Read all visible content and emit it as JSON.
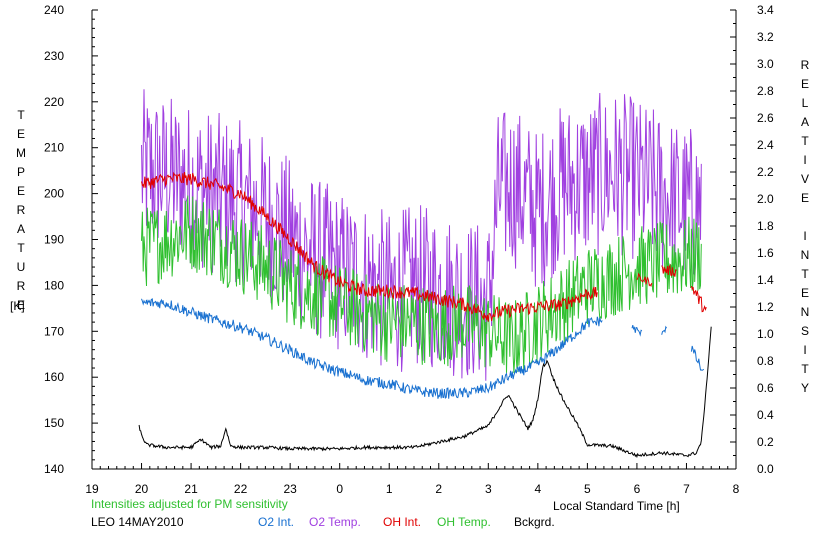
{
  "chart_data": {
    "type": "line",
    "xlabel": "Local Standard Time [h]",
    "ylabel_left": "TEMPERATURE",
    "ylabel_left_unit": "[K]",
    "ylabel_right": "RELATIVE INTENSITY",
    "x_ticks": [
      "19",
      "20",
      "21",
      "22",
      "23",
      "0",
      "1",
      "2",
      "3",
      "4",
      "5",
      "6",
      "7",
      "8"
    ],
    "xlim": [
      19,
      32
    ],
    "ylim_left": [
      140,
      240
    ],
    "ylim_right": [
      0.0,
      3.4
    ],
    "y_ticks_left": [
      "140",
      "150",
      "160",
      "170",
      "180",
      "190",
      "200",
      "210",
      "220",
      "230",
      "240"
    ],
    "y_ticks_right": [
      "0.0",
      "0.2",
      "0.4",
      "0.6",
      "0.8",
      "1.0",
      "1.2",
      "1.4",
      "1.6",
      "1.8",
      "2.0",
      "2.2",
      "2.4",
      "2.6",
      "2.8",
      "3.0",
      "3.2",
      "3.4"
    ],
    "note": "Intensities adjusted for PM sensitivity",
    "station": "LEO 14MAY2010",
    "grid": false,
    "series": [
      {
        "name": "O2 Temp.",
        "color": "#a040e0",
        "axis": "left",
        "noise": 18,
        "x": [
          20.0,
          20.5,
          21.0,
          21.5,
          22.0,
          22.5,
          23.0,
          23.5,
          24.0,
          24.5,
          25.0,
          25.5,
          26.0,
          26.5,
          27.0,
          27.2,
          27.5,
          28.0,
          28.5,
          29.0,
          29.5,
          30.0,
          30.5,
          31.0,
          31.3
        ],
        "y": [
          205,
          204,
          202,
          200,
          198,
          195,
          190,
          186,
          183,
          181,
          178,
          180,
          179,
          177,
          176,
          200,
          202,
          196,
          202,
          203,
          205,
          203,
          200,
          197,
          198
        ]
      },
      {
        "name": "OH Temp.",
        "color": "#30c030",
        "axis": "left",
        "noise": 9,
        "x": [
          20.0,
          20.5,
          21.0,
          21.5,
          22.0,
          22.5,
          23.0,
          23.5,
          24.0,
          24.5,
          25.0,
          25.5,
          26.0,
          26.5,
          27.0,
          27.5,
          28.0,
          28.5,
          29.0,
          29.5,
          30.0,
          30.5,
          31.0,
          31.3
        ],
        "y": [
          188,
          190,
          192,
          190,
          187,
          184,
          180,
          178,
          176,
          174,
          172,
          172,
          171,
          172,
          170,
          168,
          172,
          176,
          180,
          182,
          184,
          185,
          186,
          187
        ]
      },
      {
        "name": "OH Int.",
        "color": "#e00000",
        "axis": "right",
        "noise": 0.05,
        "x": [
          20.0,
          20.5,
          21.0,
          21.5,
          22.0,
          22.5,
          23.0,
          23.5,
          24.0,
          24.5,
          25.0,
          25.5,
          26.0,
          26.5,
          27.0,
          27.5,
          28.0,
          28.5,
          29.0,
          29.2
        ],
        "y": [
          2.11,
          2.15,
          2.15,
          2.1,
          2.04,
          1.88,
          1.7,
          1.5,
          1.38,
          1.32,
          1.32,
          1.3,
          1.26,
          1.22,
          1.14,
          1.18,
          1.2,
          1.22,
          1.3,
          1.3
        ]
      },
      {
        "name": "OH Int.",
        "color": "#e00000",
        "axis": "right",
        "noise": 0.03,
        "x": [
          30.0,
          30.3
        ],
        "y": [
          1.42,
          1.38
        ]
      },
      {
        "name": "OH Int.",
        "color": "#e00000",
        "axis": "right",
        "noise": 0.04,
        "x": [
          30.5,
          30.8
        ],
        "y": [
          1.48,
          1.46
        ]
      },
      {
        "name": "OH Int.",
        "color": "#e00000",
        "axis": "right",
        "noise": 0.05,
        "x": [
          31.1,
          31.4
        ],
        "y": [
          1.36,
          1.16
        ]
      },
      {
        "name": "O2 Int.",
        "color": "#1870d0",
        "axis": "right",
        "noise": 0.04,
        "x": [
          20.0,
          20.5,
          21.0,
          21.5,
          22.0,
          22.5,
          23.0,
          23.5,
          24.0,
          24.5,
          25.0,
          25.5,
          26.0,
          26.5,
          27.0,
          27.5,
          28.0,
          28.5,
          29.0,
          29.3
        ],
        "y": [
          1.23,
          1.23,
          1.16,
          1.1,
          1.05,
          0.97,
          0.88,
          0.78,
          0.72,
          0.66,
          0.63,
          0.58,
          0.56,
          0.56,
          0.6,
          0.7,
          0.78,
          0.92,
          1.08,
          1.1
        ]
      },
      {
        "name": "O2 Int.",
        "color": "#1870d0",
        "axis": "right",
        "noise": 0.03,
        "x": [
          29.9,
          30.1
        ],
        "y": [
          1.05,
          1.0
        ]
      },
      {
        "name": "O2 Int.",
        "color": "#1870d0",
        "axis": "right",
        "noise": 0.03,
        "x": [
          30.5,
          30.6
        ],
        "y": [
          1.02,
          1.05
        ]
      },
      {
        "name": "O2 Int.",
        "color": "#1870d0",
        "axis": "right",
        "noise": 0.04,
        "x": [
          31.1,
          31.35
        ],
        "y": [
          0.9,
          0.7
        ]
      },
      {
        "name": "Bckgrd.",
        "color": "#000000",
        "axis": "right",
        "noise": 0.012,
        "x": [
          19.95,
          20.0,
          20.1,
          20.5,
          21.0,
          21.2,
          21.4,
          21.6,
          21.7,
          21.8,
          22.0,
          22.5,
          23.0,
          23.5,
          24.0,
          24.5,
          25.0,
          25.5,
          26.0,
          26.5,
          27.0,
          27.3,
          27.4,
          27.6,
          27.8,
          27.9,
          28.0,
          28.1,
          28.2,
          28.3,
          28.5,
          28.8,
          29.0,
          29.5,
          30.0,
          30.5,
          31.0,
          31.2,
          31.3,
          31.4,
          31.5
        ],
        "y": [
          0.32,
          0.25,
          0.18,
          0.16,
          0.16,
          0.22,
          0.16,
          0.17,
          0.3,
          0.17,
          0.16,
          0.16,
          0.15,
          0.15,
          0.15,
          0.16,
          0.16,
          0.16,
          0.2,
          0.24,
          0.32,
          0.5,
          0.55,
          0.42,
          0.3,
          0.36,
          0.52,
          0.76,
          0.8,
          0.68,
          0.52,
          0.33,
          0.18,
          0.17,
          0.1,
          0.12,
          0.1,
          0.12,
          0.2,
          0.6,
          1.06
        ]
      }
    ]
  },
  "legend": {
    "note": "Intensities adjusted for PM sensitivity",
    "station": "LEO 14MAY2010",
    "items": [
      {
        "label": "O2 Int.",
        "color": "#1870d0"
      },
      {
        "label": "O2 Temp.",
        "color": "#a040e0"
      },
      {
        "label": "OH Int.",
        "color": "#e00000"
      },
      {
        "label": "OH Temp.",
        "color": "#30c030"
      },
      {
        "label": "Bckgrd.",
        "color": "#000000"
      }
    ]
  }
}
